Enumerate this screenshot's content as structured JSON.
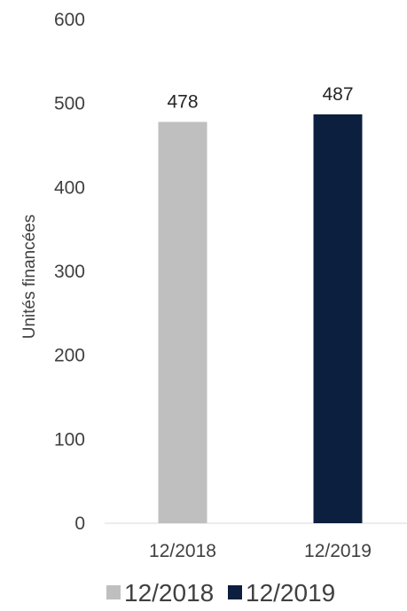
{
  "chart_data": {
    "type": "bar",
    "title": "",
    "xlabel": "",
    "ylabel": "Unités financées",
    "categories": [
      "12/2018",
      "12/2019"
    ],
    "values": [
      478,
      487
    ],
    "data_labels": [
      "478",
      "487"
    ],
    "colors": [
      "#bfbfbf",
      "#0c1f3f"
    ],
    "ylim": [
      0,
      600
    ],
    "y_ticks": [
      0,
      100,
      200,
      300,
      400,
      500,
      600
    ],
    "y_tick_labels": [
      "0",
      "100",
      "200",
      "300",
      "400",
      "500",
      "600"
    ],
    "grid": false,
    "legend": {
      "position": "bottom",
      "entries": [
        {
          "label": "12/2018",
          "color": "#bfbfbf"
        },
        {
          "label": "12/2019",
          "color": "#0c1f3f"
        }
      ]
    }
  }
}
